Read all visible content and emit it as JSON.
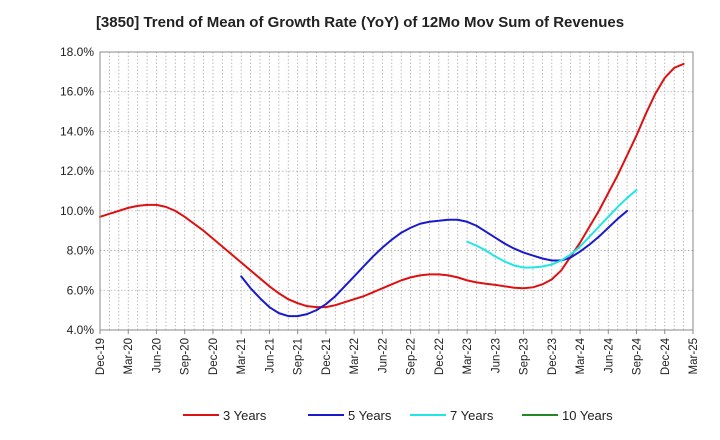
{
  "chart_data": {
    "type": "line",
    "title": "[3850]  Trend of Mean of Growth Rate (YoY) of 12Mo Mov Sum of Revenues",
    "xlabel": "",
    "ylabel": "",
    "ylim": [
      4.0,
      18.0
    ],
    "yticks": [
      4.0,
      6.0,
      8.0,
      10.0,
      12.0,
      14.0,
      16.0,
      18.0
    ],
    "ytick_labels": [
      "4.0%",
      "6.0%",
      "8.0%",
      "10.0%",
      "12.0%",
      "14.0%",
      "16.0%",
      "18.0%"
    ],
    "xtick_labels": [
      "Dec-19",
      "Mar-20",
      "Jun-20",
      "Sep-20",
      "Dec-20",
      "Mar-21",
      "Jun-21",
      "Sep-21",
      "Dec-21",
      "Mar-22",
      "Jun-22",
      "Sep-22",
      "Dec-22",
      "Mar-23",
      "Jun-23",
      "Sep-23",
      "Dec-23",
      "Mar-24",
      "Jun-24",
      "Sep-24",
      "Dec-24",
      "Mar-25"
    ],
    "grid": true,
    "legend_position": "bottom",
    "series": [
      {
        "name": "3 Years",
        "color": "#dd1111",
        "start_month": 0,
        "values": [
          9.7,
          9.85,
          10.0,
          10.15,
          10.25,
          10.3,
          10.3,
          10.2,
          10.0,
          9.7,
          9.35,
          9.0,
          8.6,
          8.2,
          7.8,
          7.4,
          7.0,
          6.6,
          6.2,
          5.85,
          5.55,
          5.35,
          5.2,
          5.15,
          5.15,
          5.25,
          5.4,
          5.55,
          5.7,
          5.9,
          6.1,
          6.3,
          6.5,
          6.65,
          6.75,
          6.8,
          6.8,
          6.75,
          6.65,
          6.5,
          6.4,
          6.33,
          6.27,
          6.2,
          6.13,
          6.1,
          6.15,
          6.3,
          6.55,
          7.0,
          7.7,
          8.4,
          9.2,
          10.0,
          10.9,
          11.8,
          12.8,
          13.8,
          14.9,
          15.9,
          16.7,
          17.2,
          17.4
        ]
      },
      {
        "name": "5 Years",
        "color": "#1a1acc",
        "start_month": 15,
        "values": [
          6.7,
          6.1,
          5.6,
          5.15,
          4.85,
          4.7,
          4.7,
          4.8,
          5.0,
          5.3,
          5.7,
          6.2,
          6.7,
          7.2,
          7.7,
          8.15,
          8.55,
          8.9,
          9.15,
          9.35,
          9.45,
          9.5,
          9.55,
          9.55,
          9.45,
          9.25,
          8.95,
          8.65,
          8.35,
          8.1,
          7.9,
          7.75,
          7.6,
          7.5,
          7.5,
          7.65,
          7.95,
          8.3,
          8.7,
          9.15,
          9.6,
          10.0
        ]
      },
      {
        "name": "7 Years",
        "color": "#22e5e5",
        "start_month": 39,
        "values": [
          8.45,
          8.25,
          8.0,
          7.7,
          7.45,
          7.25,
          7.15,
          7.15,
          7.2,
          7.3,
          7.5,
          7.8,
          8.2,
          8.7,
          9.2,
          9.7,
          10.2,
          10.65,
          11.05
        ]
      },
      {
        "name": "10 Years",
        "color": "#228822",
        "start_month": 0,
        "values": []
      }
    ]
  }
}
